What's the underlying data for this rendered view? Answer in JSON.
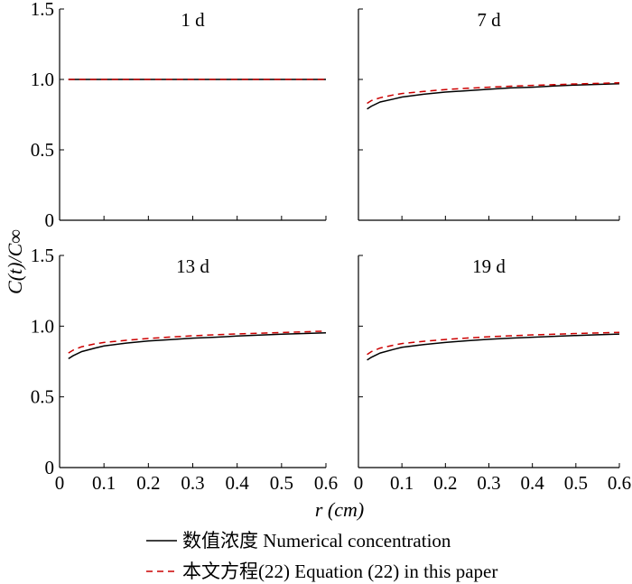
{
  "figure": {
    "ylabel": "C(t)/C∞",
    "xlabel": "r (cm)"
  },
  "legend": {
    "items": [
      {
        "label": "数值浓度 Numerical concentration",
        "color": "#000000",
        "dash": "solid"
      },
      {
        "label": "本文方程(22) Equation (22) in this paper",
        "color": "#cc0000",
        "dash": "dashed"
      }
    ]
  },
  "chart_data": [
    {
      "type": "line",
      "title": "1 d",
      "xlim": [
        0,
        0.6
      ],
      "ylim": [
        0,
        1.5
      ],
      "x_ticks": [
        "0",
        "0.1",
        "0.2",
        "0.3",
        "0.4",
        "0.5",
        "0.6"
      ],
      "y_ticks": [
        "0",
        "0.5",
        "1.0",
        "1.5"
      ],
      "series": [
        {
          "x": [
            0.02,
            0.05,
            0.1,
            0.15,
            0.2,
            0.25,
            0.3,
            0.35,
            0.4,
            0.45,
            0.5,
            0.55,
            0.6
          ],
          "y": [
            1.0,
            1.0,
            1.0,
            1.0,
            1.0,
            1.0,
            1.0,
            1.0,
            1.0,
            1.0,
            1.0,
            1.0,
            1.0
          ]
        },
        {
          "x": [
            0.02,
            0.05,
            0.1,
            0.15,
            0.2,
            0.25,
            0.3,
            0.35,
            0.4,
            0.45,
            0.5,
            0.55,
            0.6
          ],
          "y": [
            1.0,
            1.0,
            1.0,
            1.0,
            1.0,
            1.0,
            1.0,
            1.0,
            1.0,
            1.0,
            1.0,
            1.0,
            1.0
          ]
        }
      ]
    },
    {
      "type": "line",
      "title": "7 d",
      "xlim": [
        0,
        0.6
      ],
      "ylim": [
        0,
        1.5
      ],
      "x_ticks": [
        "0",
        "0.1",
        "0.2",
        "0.3",
        "0.4",
        "0.5",
        "0.6"
      ],
      "y_ticks": [
        "0",
        "0.5",
        "1.0",
        "1.5"
      ],
      "series": [
        {
          "x": [
            0.02,
            0.03,
            0.05,
            0.08,
            0.1,
            0.15,
            0.2,
            0.25,
            0.3,
            0.35,
            0.4,
            0.45,
            0.5,
            0.55,
            0.6
          ],
          "y": [
            0.79,
            0.81,
            0.84,
            0.86,
            0.875,
            0.895,
            0.91,
            0.92,
            0.93,
            0.94,
            0.945,
            0.953,
            0.96,
            0.965,
            0.97
          ]
        },
        {
          "x": [
            0.02,
            0.03,
            0.05,
            0.08,
            0.1,
            0.15,
            0.2,
            0.25,
            0.3,
            0.35,
            0.4,
            0.45,
            0.5,
            0.55,
            0.6
          ],
          "y": [
            0.83,
            0.85,
            0.87,
            0.89,
            0.9,
            0.915,
            0.928,
            0.937,
            0.945,
            0.952,
            0.958,
            0.963,
            0.968,
            0.972,
            0.976
          ]
        }
      ]
    },
    {
      "type": "line",
      "title": "13 d",
      "xlim": [
        0,
        0.6
      ],
      "ylim": [
        0,
        1.5
      ],
      "x_ticks": [
        "0",
        "0.1",
        "0.2",
        "0.3",
        "0.4",
        "0.5",
        "0.6"
      ],
      "y_ticks": [
        "0",
        "0.5",
        "1.0",
        "1.5"
      ],
      "series": [
        {
          "x": [
            0.02,
            0.03,
            0.05,
            0.08,
            0.1,
            0.15,
            0.2,
            0.25,
            0.3,
            0.35,
            0.4,
            0.45,
            0.5,
            0.55,
            0.6
          ],
          "y": [
            0.77,
            0.79,
            0.82,
            0.845,
            0.86,
            0.88,
            0.895,
            0.905,
            0.915,
            0.922,
            0.93,
            0.937,
            0.943,
            0.948,
            0.953
          ]
        },
        {
          "x": [
            0.02,
            0.03,
            0.05,
            0.08,
            0.1,
            0.15,
            0.2,
            0.25,
            0.3,
            0.35,
            0.4,
            0.45,
            0.5,
            0.55,
            0.6
          ],
          "y": [
            0.81,
            0.83,
            0.855,
            0.875,
            0.885,
            0.9,
            0.913,
            0.923,
            0.932,
            0.939,
            0.945,
            0.95,
            0.955,
            0.96,
            0.965
          ]
        }
      ]
    },
    {
      "type": "line",
      "title": "19 d",
      "xlim": [
        0,
        0.6
      ],
      "ylim": [
        0,
        1.5
      ],
      "x_ticks": [
        "0",
        "0.1",
        "0.2",
        "0.3",
        "0.4",
        "0.5",
        "0.6"
      ],
      "y_ticks": [
        "0",
        "0.5",
        "1.0",
        "1.5"
      ],
      "series": [
        {
          "x": [
            0.02,
            0.03,
            0.05,
            0.08,
            0.1,
            0.15,
            0.2,
            0.25,
            0.3,
            0.35,
            0.4,
            0.45,
            0.5,
            0.55,
            0.6
          ],
          "y": [
            0.76,
            0.78,
            0.81,
            0.835,
            0.85,
            0.87,
            0.885,
            0.897,
            0.907,
            0.915,
            0.922,
            0.928,
            0.934,
            0.939,
            0.944
          ]
        },
        {
          "x": [
            0.02,
            0.03,
            0.05,
            0.08,
            0.1,
            0.15,
            0.2,
            0.25,
            0.3,
            0.35,
            0.4,
            0.45,
            0.5,
            0.55,
            0.6
          ],
          "y": [
            0.8,
            0.82,
            0.845,
            0.865,
            0.877,
            0.893,
            0.906,
            0.916,
            0.925,
            0.932,
            0.938,
            0.943,
            0.948,
            0.952,
            0.956
          ]
        }
      ]
    }
  ]
}
